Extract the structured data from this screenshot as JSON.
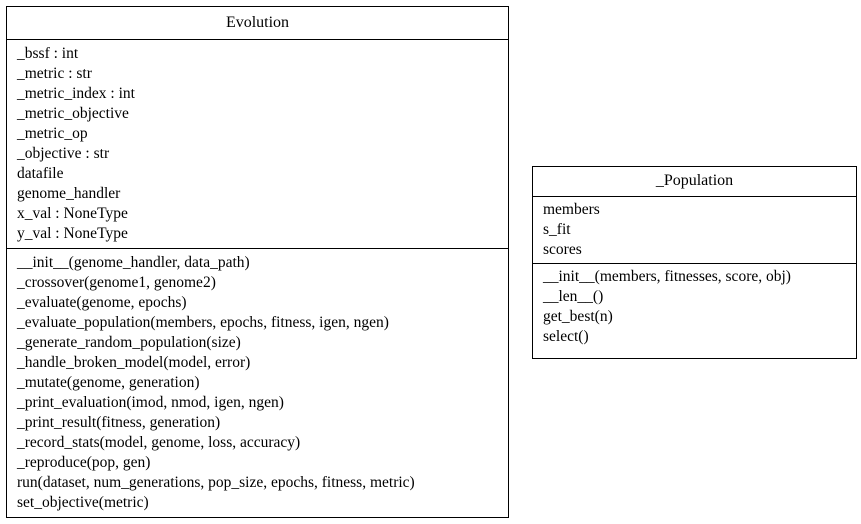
{
  "classes": [
    {
      "name": "Evolution",
      "attributes": [
        "_bssf : int",
        "_metric : str",
        "_metric_index : int",
        "_metric_objective",
        "_metric_op",
        "_objective : str",
        "datafile",
        "genome_handler",
        "x_val : NoneType",
        "y_val : NoneType"
      ],
      "methods": [
        "__init__(genome_handler, data_path)",
        "_crossover(genome1, genome2)",
        "_evaluate(genome, epochs)",
        "_evaluate_population(members, epochs, fitness, igen, ngen)",
        "_generate_random_population(size)",
        "_handle_broken_model(model, error)",
        "_mutate(genome, generation)",
        "_print_evaluation(imod, nmod, igen, ngen)",
        "_print_result(fitness, generation)",
        "_record_stats(model, genome, loss, accuracy)",
        "_reproduce(pop, gen)",
        "run(dataset, num_generations, pop_size, epochs, fitness, metric)",
        "set_objective(metric)"
      ]
    },
    {
      "name": "_Population",
      "attributes": [
        "members",
        "s_fit",
        "scores"
      ],
      "methods": [
        "__init__(members, fitnesses, score, obj)",
        "__len__()",
        "get_best(n)",
        "select()"
      ]
    }
  ]
}
